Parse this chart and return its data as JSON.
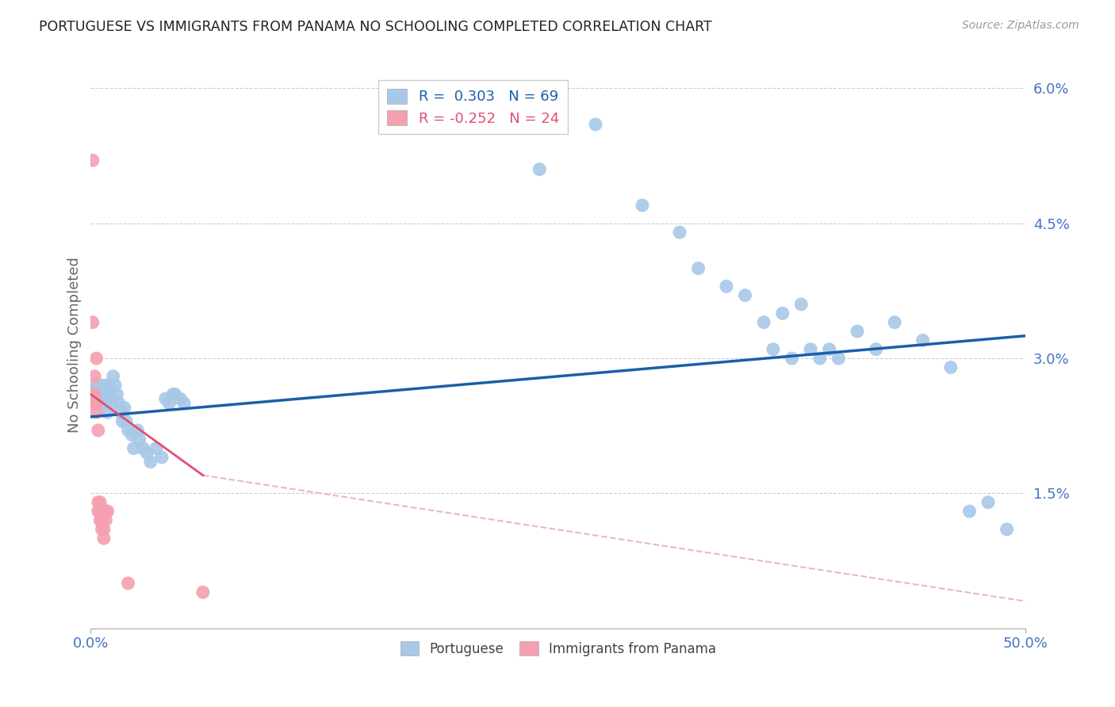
{
  "title": "PORTUGUESE VS IMMIGRANTS FROM PANAMA NO SCHOOLING COMPLETED CORRELATION CHART",
  "source": "Source: ZipAtlas.com",
  "ylabel": "No Schooling Completed",
  "yticks": [
    0.0,
    0.015,
    0.03,
    0.045,
    0.06
  ],
  "ytick_labels": [
    "",
    "1.5%",
    "3.0%",
    "4.5%",
    "6.0%"
  ],
  "xlim": [
    0.0,
    0.5
  ],
  "ylim": [
    0.0,
    0.063
  ],
  "legend_entries": [
    {
      "label": "R =  0.303   N = 69",
      "color": "#aec6e8"
    },
    {
      "label": "R = -0.252   N = 24",
      "color": "#f4a7b2"
    }
  ],
  "portuguese_scatter": [
    [
      0.001,
      0.0255
    ],
    [
      0.001,
      0.0255
    ],
    [
      0.002,
      0.026
    ],
    [
      0.002,
      0.0265
    ],
    [
      0.003,
      0.025
    ],
    [
      0.003,
      0.0255
    ],
    [
      0.003,
      0.027
    ],
    [
      0.004,
      0.026
    ],
    [
      0.004,
      0.025
    ],
    [
      0.004,
      0.027
    ],
    [
      0.005,
      0.026
    ],
    [
      0.005,
      0.025
    ],
    [
      0.006,
      0.0255
    ],
    [
      0.006,
      0.027
    ],
    [
      0.007,
      0.026
    ],
    [
      0.007,
      0.0265
    ],
    [
      0.008,
      0.025
    ],
    [
      0.008,
      0.027
    ],
    [
      0.009,
      0.024
    ],
    [
      0.009,
      0.0255
    ],
    [
      0.01,
      0.026
    ],
    [
      0.01,
      0.027
    ],
    [
      0.011,
      0.025
    ],
    [
      0.012,
      0.028
    ],
    [
      0.013,
      0.027
    ],
    [
      0.014,
      0.026
    ],
    [
      0.015,
      0.025
    ],
    [
      0.016,
      0.024
    ],
    [
      0.017,
      0.023
    ],
    [
      0.018,
      0.0245
    ],
    [
      0.019,
      0.023
    ],
    [
      0.02,
      0.022
    ],
    [
      0.022,
      0.0215
    ],
    [
      0.023,
      0.02
    ],
    [
      0.025,
      0.022
    ],
    [
      0.026,
      0.021
    ],
    [
      0.028,
      0.02
    ],
    [
      0.03,
      0.0195
    ],
    [
      0.032,
      0.0185
    ],
    [
      0.035,
      0.02
    ],
    [
      0.038,
      0.019
    ],
    [
      0.04,
      0.0255
    ],
    [
      0.042,
      0.025
    ],
    [
      0.044,
      0.026
    ],
    [
      0.045,
      0.026
    ],
    [
      0.048,
      0.0255
    ],
    [
      0.05,
      0.025
    ],
    [
      0.24,
      0.051
    ],
    [
      0.27,
      0.056
    ],
    [
      0.295,
      0.047
    ],
    [
      0.315,
      0.044
    ],
    [
      0.325,
      0.04
    ],
    [
      0.34,
      0.038
    ],
    [
      0.35,
      0.037
    ],
    [
      0.36,
      0.034
    ],
    [
      0.365,
      0.031
    ],
    [
      0.37,
      0.035
    ],
    [
      0.375,
      0.03
    ],
    [
      0.38,
      0.036
    ],
    [
      0.385,
      0.031
    ],
    [
      0.39,
      0.03
    ],
    [
      0.395,
      0.031
    ],
    [
      0.4,
      0.03
    ],
    [
      0.41,
      0.033
    ],
    [
      0.42,
      0.031
    ],
    [
      0.43,
      0.034
    ],
    [
      0.445,
      0.032
    ],
    [
      0.46,
      0.029
    ],
    [
      0.47,
      0.013
    ],
    [
      0.48,
      0.014
    ],
    [
      0.49,
      0.011
    ]
  ],
  "panama_scatter": [
    [
      0.001,
      0.052
    ],
    [
      0.001,
      0.034
    ],
    [
      0.002,
      0.028
    ],
    [
      0.002,
      0.026
    ],
    [
      0.002,
      0.025
    ],
    [
      0.003,
      0.025
    ],
    [
      0.003,
      0.024
    ],
    [
      0.003,
      0.03
    ],
    [
      0.004,
      0.022
    ],
    [
      0.004,
      0.014
    ],
    [
      0.004,
      0.013
    ],
    [
      0.005,
      0.014
    ],
    [
      0.005,
      0.013
    ],
    [
      0.005,
      0.012
    ],
    [
      0.006,
      0.012
    ],
    [
      0.006,
      0.011
    ],
    [
      0.006,
      0.013
    ],
    [
      0.007,
      0.011
    ],
    [
      0.007,
      0.01
    ],
    [
      0.008,
      0.013
    ],
    [
      0.008,
      0.012
    ],
    [
      0.009,
      0.013
    ],
    [
      0.02,
      0.005
    ],
    [
      0.06,
      0.004
    ]
  ],
  "portuguese_line": {
    "x0": 0.0,
    "y0": 0.0235,
    "x1": 0.5,
    "y1": 0.0325
  },
  "panama_line_solid": {
    "x0": 0.0,
    "y0": 0.026,
    "x1": 0.06,
    "y1": 0.017
  },
  "panama_line_dashed": {
    "x0": 0.06,
    "y0": 0.017,
    "x1": 0.5,
    "y1": 0.003
  },
  "scatter_color_portuguese": "#a8c8e8",
  "scatter_color_panama": "#f4a0b0",
  "line_color_portuguese": "#1a5fa8",
  "line_color_panama_solid": "#e05070",
  "line_color_panama_dashed": "#e8b8c8",
  "background_color": "#ffffff",
  "grid_color": "#cccccc",
  "title_color": "#222222",
  "axis_label_color": "#4472c4",
  "ylabel_color": "#666666"
}
